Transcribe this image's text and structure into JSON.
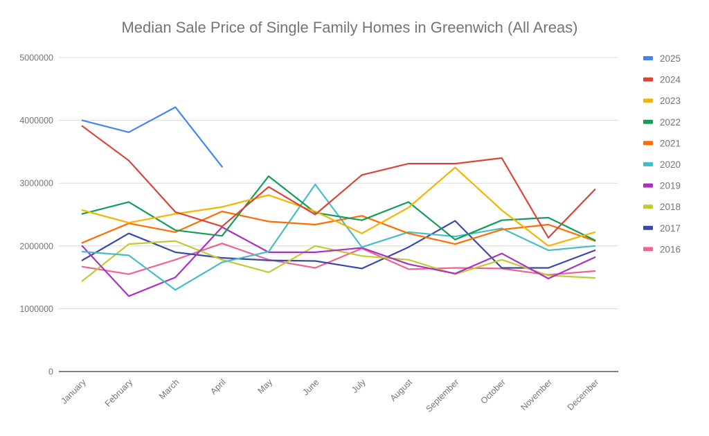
{
  "chart_data": {
    "type": "line",
    "title": "Median Sale Price of Single Family Homes in Greenwich (All Areas)",
    "xlabel": "",
    "ylabel": "",
    "ylim": [
      0,
      5000000
    ],
    "yticks": [
      0,
      1000000,
      2000000,
      3000000,
      4000000,
      5000000
    ],
    "ytick_labels": [
      "0",
      "1000000",
      "2000000",
      "3000000",
      "4000000",
      "5000000"
    ],
    "grid": true,
    "legend_position": "right",
    "categories": [
      "January",
      "February",
      "March",
      "April",
      "May",
      "June",
      "July",
      "August",
      "September",
      "October",
      "November",
      "December"
    ],
    "series": [
      {
        "name": "2025",
        "color": "#4285F4",
        "values": [
          4000000,
          3810000,
          4210000,
          3260000,
          null,
          null,
          null,
          null,
          null,
          null,
          null,
          null
        ]
      },
      {
        "name": "2024",
        "color": "#DB4437",
        "values": [
          3910000,
          3360000,
          2540000,
          2310000,
          2940000,
          2500000,
          3130000,
          3310000,
          3310000,
          3400000,
          2130000,
          2900000
        ]
      },
      {
        "name": "2023",
        "color": "#F4B400",
        "values": [
          2570000,
          2370000,
          2510000,
          2620000,
          2810000,
          2550000,
          2200000,
          2610000,
          3250000,
          2570000,
          2000000,
          2220000
        ]
      },
      {
        "name": "2022",
        "color": "#0F9D58",
        "values": [
          2510000,
          2700000,
          2250000,
          2160000,
          3110000,
          2530000,
          2410000,
          2700000,
          2100000,
          2410000,
          2450000,
          2090000
        ]
      },
      {
        "name": "2021",
        "color": "#FF6D01",
        "values": [
          2050000,
          2360000,
          2220000,
          2550000,
          2390000,
          2340000,
          2480000,
          2200000,
          2030000,
          2260000,
          2340000,
          2080000
        ]
      },
      {
        "name": "2020",
        "color": "#46BDC6",
        "values": [
          1910000,
          1850000,
          1300000,
          1740000,
          1910000,
          2980000,
          1980000,
          2220000,
          2150000,
          2280000,
          1930000,
          2000000
        ]
      },
      {
        "name": "2019",
        "color": "#AB30C4",
        "values": [
          2000000,
          1200000,
          1500000,
          2300000,
          1900000,
          1900000,
          1970000,
          1710000,
          1560000,
          1880000,
          1480000,
          1820000
        ]
      },
      {
        "name": "2018",
        "color": "#C0CA33",
        "values": [
          1440000,
          2030000,
          2080000,
          1780000,
          1580000,
          2000000,
          1840000,
          1780000,
          1550000,
          1780000,
          1530000,
          1490000
        ]
      },
      {
        "name": "2017",
        "color": "#3949AB",
        "values": [
          1770000,
          2200000,
          1900000,
          1810000,
          1770000,
          1760000,
          1640000,
          1980000,
          2400000,
          1650000,
          1650000,
          1930000
        ]
      },
      {
        "name": "2016",
        "color": "#F06292",
        "values": [
          1670000,
          1550000,
          1780000,
          2040000,
          1780000,
          1650000,
          1960000,
          1630000,
          1650000,
          1640000,
          1540000,
          1600000
        ]
      }
    ]
  }
}
